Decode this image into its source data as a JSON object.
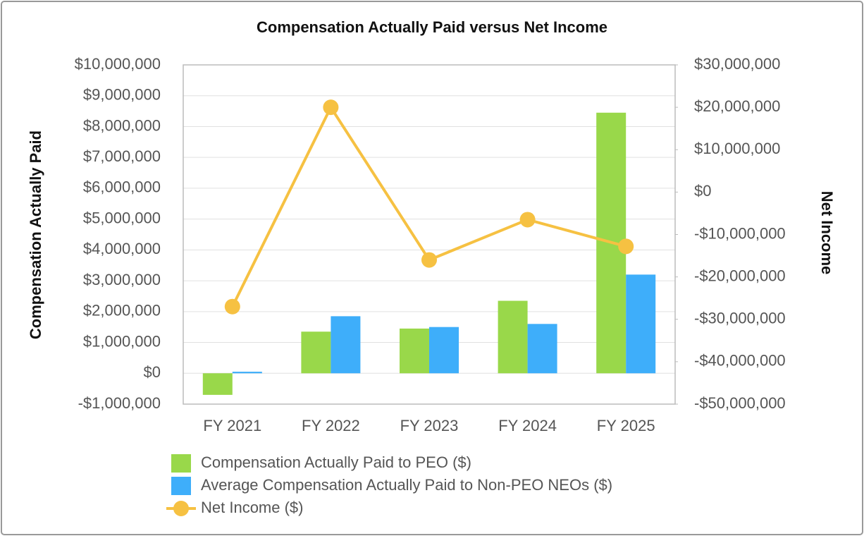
{
  "chart_data": {
    "type": "bar_line",
    "title": "Compensation Actually Paid versus Net Income",
    "y_label": "Compensation Actually Paid",
    "y2_label": "Net Income",
    "categories": [
      "FY 2021",
      "FY 2022",
      "FY 2023",
      "FY 2024",
      "FY 2025"
    ],
    "series": [
      {
        "name": "Compensation Actually Paid to PEO ($)",
        "color": "#99d84a",
        "type": "bar",
        "values": [
          -700000,
          1350000,
          1450000,
          2350000,
          8450000
        ]
      },
      {
        "name": "Average Compensation Actually Paid to Non-PEO NEOs ($)",
        "color": "#3eaefa",
        "type": "bar",
        "values": [
          50000,
          1850000,
          1500000,
          1600000,
          3200000
        ]
      },
      {
        "name": "Net Income ($)",
        "color": "#f6c142",
        "type": "line",
        "axis": "y2",
        "values": [
          -27000000,
          20000000,
          -16000000,
          -6500000,
          -12800000
        ]
      }
    ],
    "ylim": [
      -1000000,
      10000000
    ],
    "yticks": [
      {
        "value": -1000000,
        "label": "-$1,000,000"
      },
      {
        "value": 0,
        "label": "$0"
      },
      {
        "value": 1000000,
        "label": "$1,000,000"
      },
      {
        "value": 2000000,
        "label": "$2,000,000"
      },
      {
        "value": 3000000,
        "label": "$3,000,000"
      },
      {
        "value": 4000000,
        "label": "$4,000,000"
      },
      {
        "value": 5000000,
        "label": "$5,000,000"
      },
      {
        "value": 6000000,
        "label": "$6,000,000"
      },
      {
        "value": 7000000,
        "label": "$7,000,000"
      },
      {
        "value": 8000000,
        "label": "$8,000,000"
      },
      {
        "value": 9000000,
        "label": "$9,000,000"
      },
      {
        "value": 10000000,
        "label": "$10,000,000"
      }
    ],
    "y2lim": [
      -50000000,
      30000000
    ],
    "y2ticks": [
      {
        "value": -50000000,
        "label": "-$50,000,000"
      },
      {
        "value": -40000000,
        "label": "-$40,000,000"
      },
      {
        "value": -30000000,
        "label": "-$30,000,000"
      },
      {
        "value": -20000000,
        "label": "-$20,000,000"
      },
      {
        "value": -10000000,
        "label": "-$10,000,000"
      },
      {
        "value": 0,
        "label": "$0"
      },
      {
        "value": 10000000,
        "label": "$10,000,000"
      },
      {
        "value": 20000000,
        "label": "$20,000,000"
      },
      {
        "value": 30000000,
        "label": "$30,000,000"
      }
    ],
    "grid": true
  }
}
